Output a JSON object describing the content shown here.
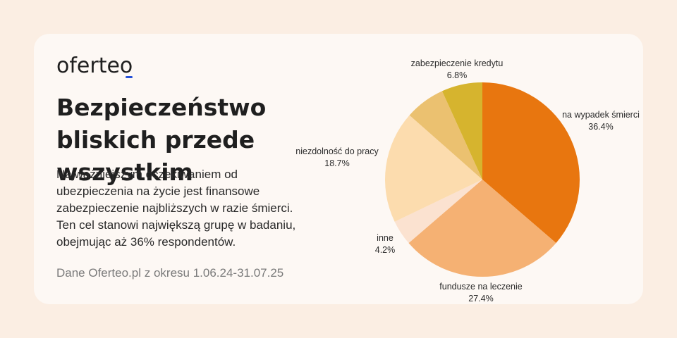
{
  "brand": {
    "logo_text": "oferteo"
  },
  "header": {
    "title": "Bezpieczeństwo bliskich przede wszystkim"
  },
  "description": {
    "lines": [
      "Najważniejszym oczekiwaniem od",
      "ubezpieczenia na życie jest finansowe",
      "zabezpieczenie najbliższych w razie śmierci.",
      "Ten cel stanowi największą grupę w badaniu,",
      "obejmując aż 36% respondentów."
    ]
  },
  "source": {
    "text": "Dane Oferteo.pl z okresu 1.06.24-31.07.25"
  },
  "chart_data": {
    "type": "pie",
    "title": "",
    "slices": [
      {
        "label": "na wypadek śmierci",
        "value": 36.4,
        "display": "36.4%",
        "color": "#e8760f"
      },
      {
        "label": "fundusze na leczenie",
        "value": 27.4,
        "display": "27.4%",
        "color": "#f5b173"
      },
      {
        "label": "inne",
        "value": 4.2,
        "display": "4.2%",
        "color": "#fbe2d0"
      },
      {
        "label": "niezdolność do pracy",
        "value": 18.7,
        "display": "18.7%",
        "color": "#fcdcae"
      },
      {
        "label": "",
        "value": 6.7,
        "display": "",
        "color": "#ebc170"
      },
      {
        "label": "zabezpieczenie kredytu",
        "value": 6.8,
        "display": "6.8%",
        "color": "#d6b42e"
      }
    ],
    "start_angle_deg": 0,
    "direction": "clockwise"
  }
}
